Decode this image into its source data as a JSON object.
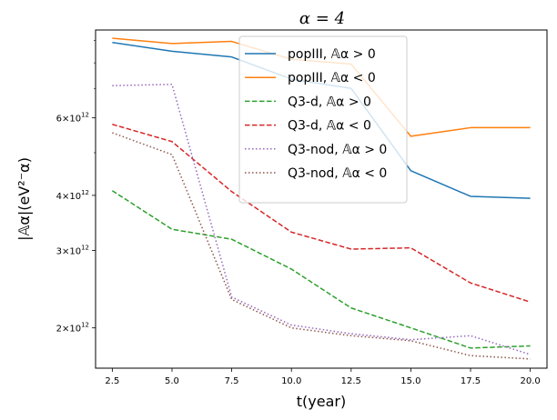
{
  "chart_data": {
    "type": "line",
    "title": "α = 4",
    "xlabel": "t(year)",
    "ylabel": "|𝔸α|(eV²⁻α)",
    "yscale": "log",
    "xlim": [
      1.8,
      20.7
    ],
    "ylim": [
      1620000000000.0,
      9500000000000.0
    ],
    "x_ticks": [
      {
        "value": 2.5,
        "label": "2.5"
      },
      {
        "value": 5.0,
        "label": "5.0"
      },
      {
        "value": 7.5,
        "label": "7.5"
      },
      {
        "value": 10.0,
        "label": "10.0"
      },
      {
        "value": 12.5,
        "label": "12.5"
      },
      {
        "value": 15.0,
        "label": "15.0"
      },
      {
        "value": 17.5,
        "label": "17.5"
      },
      {
        "value": 20.0,
        "label": "20.0"
      }
    ],
    "y_major_ticks": [
      {
        "value": 2000000000000.0,
        "mantissa": "2",
        "exp": "12"
      },
      {
        "value": 3000000000000.0,
        "mantissa": "3",
        "exp": "12"
      },
      {
        "value": 4000000000000.0,
        "mantissa": "4",
        "exp": "12"
      },
      {
        "value": 6000000000000.0,
        "mantissa": "6",
        "exp": "12"
      }
    ],
    "y_tick_times": "×10",
    "y_minor_ticks": [
      5000000000000.0,
      7000000000000.0,
      8000000000000.0,
      9000000000000.0
    ],
    "legend_position": "upper-center",
    "x": [
      2.5,
      5.0,
      7.5,
      10.0,
      12.5,
      15.0,
      17.5,
      20.0
    ],
    "series": [
      {
        "name": "popIII, 𝔸α > 0",
        "color": "#1f77b4",
        "style": "solid",
        "values": [
          8900000000000.0,
          8500000000000.0,
          8250000000000.0,
          7350000000000.0,
          7000000000000.0,
          4550000000000.0,
          3980000000000.0,
          3940000000000.0
        ]
      },
      {
        "name": "popIII, 𝔸α < 0",
        "color": "#ff7f0e",
        "style": "solid",
        "values": [
          9100000000000.0,
          8850000000000.0,
          8950000000000.0,
          8150000000000.0,
          7950000000000.0,
          5450000000000.0,
          5700000000000.0,
          5700000000000.0
        ]
      },
      {
        "name": "Q3-d, 𝔸α > 0",
        "color": "#2ca02c",
        "style": "dashed",
        "values": [
          4100000000000.0,
          3350000000000.0,
          3180000000000.0,
          2720000000000.0,
          2220000000000.0,
          2000000000000.0,
          1800000000000.0,
          1820000000000.0
        ]
      },
      {
        "name": "Q3-d, 𝔸α < 0",
        "color": "#d62728",
        "style": "dashed",
        "values": [
          5800000000000.0,
          5300000000000.0,
          4080000000000.0,
          3300000000000.0,
          3020000000000.0,
          3040000000000.0,
          2530000000000.0,
          2290000000000.0
        ]
      },
      {
        "name": "Q3-nod, 𝔸α > 0",
        "color": "#9467bd",
        "style": "dotted",
        "values": [
          7100000000000.0,
          7150000000000.0,
          2350000000000.0,
          2030000000000.0,
          1940000000000.0,
          1880000000000.0,
          1920000000000.0,
          1740000000000.0
        ]
      },
      {
        "name": "Q3-nod, 𝔸α < 0",
        "color": "#8c564b",
        "style": "dotted",
        "values": [
          5550000000000.0,
          4950000000000.0,
          2320000000000.0,
          2000000000000.0,
          1920000000000.0,
          1870000000000.0,
          1730000000000.0,
          1700000000000.0
        ]
      }
    ]
  }
}
